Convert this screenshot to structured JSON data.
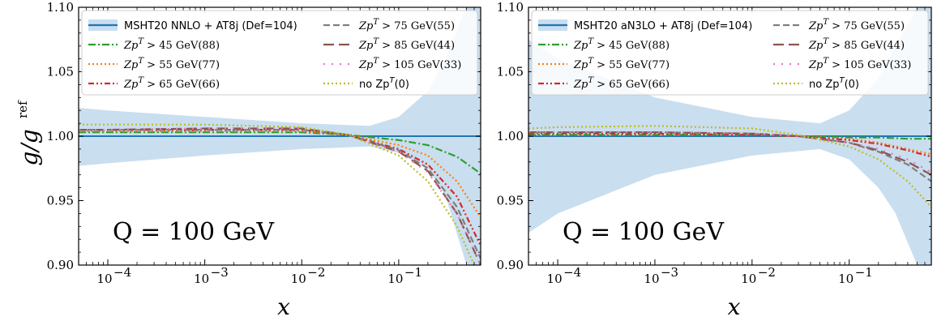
{
  "chart_data": [
    {
      "type": "line",
      "xscale": "log",
      "xlim": [
        5e-05,
        0.7
      ],
      "ylim": [
        0.9,
        1.1
      ],
      "xlabel": "x",
      "ylabel": "g/g^ref",
      "ylabel_main": "g/g",
      "ylabel_sup": "ref",
      "x_ticks": [
        0.0001,
        0.001,
        0.01,
        0.1
      ],
      "x_tick_labels": [
        {
          "base": "10",
          "exp": "−4"
        },
        {
          "base": "10",
          "exp": "−3"
        },
        {
          "base": "10",
          "exp": "−2"
        },
        {
          "base": "10",
          "exp": "−1"
        }
      ],
      "y_ticks": [
        0.9,
        0.95,
        1.0,
        1.05,
        1.1
      ],
      "y_tick_labels": [
        "0.90",
        "0.95",
        "1.00",
        "1.05",
        "1.10"
      ],
      "annotation": "Q = 100 GeV",
      "legend_position": "top",
      "band": {
        "name": "MSHT20 NNLO + AT8j (Def=104)",
        "color": "#b7d3e9",
        "x": [
          5e-05,
          0.0001,
          0.001,
          0.01,
          0.05,
          0.1,
          0.2,
          0.3,
          0.5,
          0.7
        ],
        "lower": [
          0.977,
          0.979,
          0.985,
          0.99,
          0.992,
          0.987,
          0.975,
          0.955,
          0.9,
          0.9
        ],
        "upper": [
          1.022,
          1.02,
          1.015,
          1.01,
          1.008,
          1.015,
          1.035,
          1.06,
          1.1,
          1.1
        ]
      },
      "series": [
        {
          "name": "MSHT20 NNLO + AT8j (Def=104)",
          "color": "#1f77b4",
          "dash": "solid",
          "x": [
            5e-05,
            0.7
          ],
          "values": [
            1.0,
            1.0
          ]
        },
        {
          "name": "Zp^T > 45 GeV(88)",
          "color": "#2ca02c",
          "dash": "dashdot",
          "x": [
            5e-05,
            0.0001,
            0.001,
            0.01,
            0.03,
            0.1,
            0.2,
            0.4,
            0.7
          ],
          "values": [
            1.003,
            1.003,
            1.003,
            1.003,
            1.001,
            0.997,
            0.993,
            0.984,
            0.971
          ]
        },
        {
          "name": "Zp^T > 55 GeV(77)",
          "color": "#ff7f0e",
          "dash": "dot",
          "x": [
            5e-05,
            0.0001,
            0.001,
            0.01,
            0.03,
            0.1,
            0.2,
            0.4,
            0.7
          ],
          "values": [
            1.004,
            1.004,
            1.004,
            1.004,
            1.001,
            0.993,
            0.985,
            0.965,
            0.937
          ]
        },
        {
          "name": "Zp^T > 65 GeV(66)",
          "color": "#d62728",
          "dash": "dashdotdot",
          "x": [
            5e-05,
            0.0001,
            0.001,
            0.01,
            0.03,
            0.1,
            0.2,
            0.4,
            0.7
          ],
          "values": [
            1.005,
            1.005,
            1.005,
            1.005,
            1.001,
            0.99,
            0.978,
            0.953,
            0.915
          ]
        },
        {
          "name": "Zp^T > 75 GeV(55)",
          "color": "#7f7f7f",
          "dash": "dash",
          "x": [
            5e-05,
            0.0001,
            0.001,
            0.01,
            0.03,
            0.1,
            0.2,
            0.4,
            0.7
          ],
          "values": [
            1.005,
            1.005,
            1.005,
            1.005,
            1.001,
            0.989,
            0.975,
            0.945,
            0.905
          ]
        },
        {
          "name": "Zp^T > 85 GeV(44)",
          "color": "#8c564b",
          "dash": "longdash",
          "x": [
            5e-05,
            0.0001,
            0.001,
            0.01,
            0.03,
            0.1,
            0.2,
            0.4,
            0.7
          ],
          "values": [
            1.005,
            1.005,
            1.006,
            1.006,
            1.001,
            0.988,
            0.973,
            0.94,
            0.9
          ]
        },
        {
          "name": "Zp^T > 105 GeV(33)",
          "color": "#e377c2",
          "dash": "sparse",
          "x": [
            5e-05,
            0.0001,
            0.001,
            0.01,
            0.03,
            0.1,
            0.2,
            0.4,
            0.7
          ],
          "values": [
            1.005,
            1.005,
            1.006,
            1.006,
            1.001,
            0.988,
            0.972,
            0.94,
            0.9
          ]
        },
        {
          "name": "no Zp^T(0)",
          "color": "#bcbd22",
          "dash": "dot",
          "x": [
            5e-05,
            0.0001,
            0.001,
            0.01,
            0.03,
            0.1,
            0.2,
            0.4,
            0.6
          ],
          "values": [
            1.009,
            1.009,
            1.009,
            1.007,
            1.001,
            0.985,
            0.965,
            0.93,
            0.9
          ]
        }
      ],
      "legend": {
        "columns": [
          [
            {
              "series": 0,
              "text": "MSHT20 NNLO + AT8j (Def=104)",
              "style": "sans",
              "band": true
            },
            {
              "series": 1,
              "text_pre": "Zp",
              "text_sup": "T",
              "text_post": " > 45 GeV(88)",
              "style": "math"
            },
            {
              "series": 2,
              "text_pre": "Zp",
              "text_sup": "T",
              "text_post": " > 55 GeV(77)",
              "style": "math"
            },
            {
              "series": 3,
              "text_pre": "Zp",
              "text_sup": "T",
              "text_post": " > 65 GeV(66)",
              "style": "math"
            }
          ],
          [
            {
              "series": 4,
              "text_pre": "Zp",
              "text_sup": "T",
              "text_post": " > 75 GeV(55)",
              "style": "math"
            },
            {
              "series": 5,
              "text_pre": "Zp",
              "text_sup": "T",
              "text_post": " > 85 GeV(44)",
              "style": "math"
            },
            {
              "series": 6,
              "text_pre": "Zp",
              "text_sup": "T",
              "text_post": " > 105 GeV(33)",
              "style": "math"
            },
            {
              "series": 7,
              "text_pre": "no Zp",
              "text_sup": "T",
              "text_post": "(0)",
              "style": "mixed"
            }
          ]
        ]
      }
    },
    {
      "type": "line",
      "xscale": "log",
      "xlim": [
        5e-05,
        0.7
      ],
      "ylim": [
        0.9,
        1.1
      ],
      "xlabel": "x",
      "ylabel": "",
      "x_ticks": [
        0.0001,
        0.001,
        0.01,
        0.1
      ],
      "x_tick_labels": [
        {
          "base": "10",
          "exp": "−4"
        },
        {
          "base": "10",
          "exp": "−3"
        },
        {
          "base": "10",
          "exp": "−2"
        },
        {
          "base": "10",
          "exp": "−1"
        }
      ],
      "y_ticks": [
        0.9,
        0.95,
        1.0,
        1.05,
        1.1
      ],
      "y_tick_labels": [
        "0.90",
        "0.95",
        "1.00",
        "1.05",
        "1.10"
      ],
      "annotation": "Q = 100 GeV",
      "legend_position": "top",
      "band": {
        "name": "MSHT20 aN3LO + AT8j (Def=104)",
        "color": "#b7d3e9",
        "x": [
          5e-05,
          0.0001,
          0.001,
          0.01,
          0.05,
          0.1,
          0.2,
          0.3,
          0.5,
          0.7
        ],
        "lower": [
          0.925,
          0.94,
          0.97,
          0.985,
          0.99,
          0.982,
          0.96,
          0.94,
          0.9,
          0.9
        ],
        "upper": [
          1.075,
          1.06,
          1.03,
          1.015,
          1.01,
          1.02,
          1.045,
          1.07,
          1.1,
          1.1
        ]
      },
      "series": [
        {
          "name": "MSHT20 aN3LO + AT8j (Def=104)",
          "color": "#1f77b4",
          "dash": "solid",
          "x": [
            5e-05,
            0.7
          ],
          "values": [
            1.0,
            1.0
          ]
        },
        {
          "name": "Zp^T > 45 GeV(88)",
          "color": "#2ca02c",
          "dash": "dashdot",
          "x": [
            5e-05,
            0.0001,
            0.001,
            0.01,
            0.03,
            0.1,
            0.2,
            0.4,
            0.7
          ],
          "values": [
            1.001,
            1.001,
            1.001,
            1.001,
            1.0,
            0.999,
            0.999,
            0.998,
            0.998
          ]
        },
        {
          "name": "Zp^T > 55 GeV(77)",
          "color": "#ff7f0e",
          "dash": "dot",
          "x": [
            5e-05,
            0.0001,
            0.001,
            0.01,
            0.03,
            0.1,
            0.2,
            0.4,
            0.7
          ],
          "values": [
            1.002,
            1.002,
            1.002,
            1.001,
            1.0,
            0.998,
            0.995,
            0.99,
            0.986
          ]
        },
        {
          "name": "Zp^T > 65 GeV(66)",
          "color": "#d62728",
          "dash": "dashdotdot",
          "x": [
            5e-05,
            0.0001,
            0.001,
            0.01,
            0.03,
            0.1,
            0.2,
            0.4,
            0.7
          ],
          "values": [
            1.002,
            1.002,
            1.002,
            1.001,
            1.0,
            0.997,
            0.994,
            0.989,
            0.984
          ]
        },
        {
          "name": "Zp^T > 75 GeV(55)",
          "color": "#7f7f7f",
          "dash": "dash",
          "x": [
            5e-05,
            0.0001,
            0.001,
            0.01,
            0.03,
            0.1,
            0.2,
            0.4,
            0.7
          ],
          "values": [
            1.003,
            1.003,
            1.003,
            1.002,
            1.0,
            0.995,
            0.988,
            0.978,
            0.965
          ]
        },
        {
          "name": "Zp^T > 85 GeV(44)",
          "color": "#8c564b",
          "dash": "longdash",
          "x": [
            5e-05,
            0.0001,
            0.001,
            0.01,
            0.03,
            0.1,
            0.2,
            0.4,
            0.7
          ],
          "values": [
            1.003,
            1.003,
            1.003,
            1.002,
            1.0,
            0.995,
            0.989,
            0.98,
            0.97
          ]
        },
        {
          "name": "Zp^T > 105 GeV(33)",
          "color": "#e377c2",
          "dash": "sparse",
          "x": [
            5e-05,
            0.0001,
            0.001,
            0.01,
            0.03,
            0.1,
            0.2,
            0.4,
            0.7
          ],
          "values": [
            1.003,
            1.003,
            1.003,
            1.002,
            1.0,
            0.995,
            0.99,
            0.982,
            0.972
          ]
        },
        {
          "name": "no Zp^T(0)",
          "color": "#bcbd22",
          "dash": "dot",
          "x": [
            5e-05,
            0.0001,
            0.001,
            0.01,
            0.03,
            0.1,
            0.2,
            0.4,
            0.7
          ],
          "values": [
            1.006,
            1.007,
            1.008,
            1.006,
            1.001,
            0.992,
            0.982,
            0.965,
            0.945
          ]
        }
      ],
      "legend": {
        "columns": [
          [
            {
              "series": 0,
              "text": "MSHT20 aN3LO + AT8j (Def=104)",
              "style": "sans",
              "band": true
            },
            {
              "series": 1,
              "text_pre": "Zp",
              "text_sup": "T",
              "text_post": " > 45 GeV(88)",
              "style": "math"
            },
            {
              "series": 2,
              "text_pre": "Zp",
              "text_sup": "T",
              "text_post": " > 55 GeV(77)",
              "style": "math"
            },
            {
              "series": 3,
              "text_pre": "Zp",
              "text_sup": "T",
              "text_post": " > 65 GeV(66)",
              "style": "math"
            }
          ],
          [
            {
              "series": 4,
              "text_pre": "Zp",
              "text_sup": "T",
              "text_post": " > 75 GeV(55)",
              "style": "math"
            },
            {
              "series": 5,
              "text_pre": "Zp",
              "text_sup": "T",
              "text_post": " > 85 GeV(44)",
              "style": "math"
            },
            {
              "series": 6,
              "text_pre": "Zp",
              "text_sup": "T",
              "text_post": " > 105 GeV(33)",
              "style": "math"
            },
            {
              "series": 7,
              "text_pre": "no Zp",
              "text_sup": "T",
              "text_post": "(0)",
              "style": "mixed"
            }
          ]
        ]
      }
    }
  ]
}
